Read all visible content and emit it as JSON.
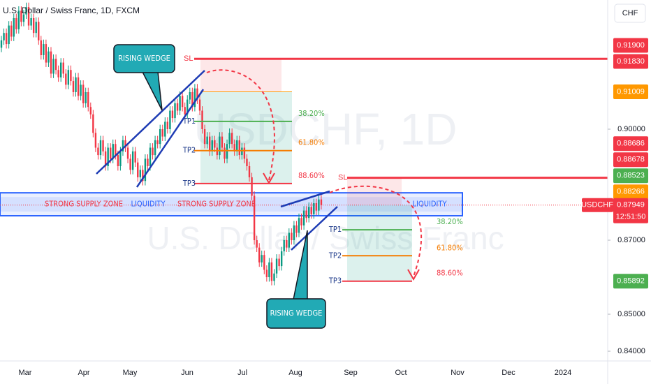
{
  "header": {
    "title": "U.S. Dollar / Swiss Franc, 1D, FXCM",
    "currency": "CHF"
  },
  "watermark": {
    "symbol": "USDCHF, 1D",
    "name": "U.S. Dollar / Swiss Franc"
  },
  "chart_data": {
    "type": "candlestick",
    "up_color": "#089981",
    "down_color": "#f23645",
    "ylim": [
      0.8368,
      0.9349
    ],
    "yticks": [
      {
        "value": 0.84,
        "label": "0.84000"
      },
      {
        "value": 0.85,
        "label": "0.85000"
      },
      {
        "value": 0.87,
        "label": "0.87000"
      },
      {
        "value": 0.9,
        "label": "0.90000"
      }
    ],
    "months": [
      "Mar",
      "Apr",
      "May",
      "Jun",
      "Jul",
      "Aug",
      "Sep",
      "Oct",
      "Nov",
      "Dec",
      "2024"
    ],
    "candles": [
      [
        0.922,
        0.9252,
        0.9208,
        0.924
      ],
      [
        0.924,
        0.9272,
        0.9228,
        0.926
      ],
      [
        0.926,
        0.9272,
        0.9218,
        0.923
      ],
      [
        0.923,
        0.9292,
        0.9218,
        0.928
      ],
      [
        0.928,
        0.9292,
        0.9238,
        0.925
      ],
      [
        0.925,
        0.9312,
        0.9238,
        0.93
      ],
      [
        0.93,
        0.9312,
        0.9258,
        0.927
      ],
      [
        0.927,
        0.9332,
        0.9258,
        0.932
      ],
      [
        0.932,
        0.9332,
        0.9278,
        0.929
      ],
      [
        0.929,
        0.9322,
        0.9278,
        0.931
      ],
      [
        0.931,
        0.9342,
        0.9298,
        0.933
      ],
      [
        0.933,
        0.9342,
        0.9268,
        0.928
      ],
      [
        0.928,
        0.9312,
        0.9268,
        0.93
      ],
      [
        0.93,
        0.9312,
        0.9248,
        0.926
      ],
      [
        0.926,
        0.9302,
        0.9248,
        0.929
      ],
      [
        0.929,
        0.9302,
        0.9228,
        0.924
      ],
      [
        0.924,
        0.9252,
        0.9188,
        0.92
      ],
      [
        0.92,
        0.9242,
        0.9188,
        0.923
      ],
      [
        0.923,
        0.9242,
        0.9168,
        0.918
      ],
      [
        0.918,
        0.9222,
        0.9168,
        0.921
      ],
      [
        0.921,
        0.9222,
        0.9138,
        0.915
      ],
      [
        0.915,
        0.9202,
        0.9138,
        0.919
      ],
      [
        0.919,
        0.9202,
        0.9148,
        0.916
      ],
      [
        0.916,
        0.9172,
        0.9128,
        0.914
      ],
      [
        0.914,
        0.9192,
        0.9128,
        0.918
      ],
      [
        0.918,
        0.9192,
        0.9138,
        0.915
      ],
      [
        0.915,
        0.9162,
        0.9108,
        0.912
      ],
      [
        0.912,
        0.9172,
        0.9108,
        0.916
      ],
      [
        0.916,
        0.9172,
        0.9118,
        0.913
      ],
      [
        0.913,
        0.9142,
        0.9088,
        0.91
      ],
      [
        0.91,
        0.9152,
        0.9088,
        0.914
      ],
      [
        0.914,
        0.9152,
        0.9078,
        0.909
      ],
      [
        0.909,
        0.9132,
        0.9078,
        0.912
      ],
      [
        0.912,
        0.9132,
        0.9058,
        0.907
      ],
      [
        0.907,
        0.9112,
        0.9058,
        0.91
      ],
      [
        0.91,
        0.9112,
        0.9048,
        0.906
      ],
      [
        0.906,
        0.9072,
        0.9028,
        0.904
      ],
      [
        0.904,
        0.9052,
        0.8978,
        0.899
      ],
      [
        0.899,
        0.9002,
        0.8938,
        0.895
      ],
      [
        0.895,
        0.8962,
        0.8918,
        0.893
      ],
      [
        0.893,
        0.8982,
        0.8918,
        0.897
      ],
      [
        0.897,
        0.8982,
        0.8928,
        0.894
      ],
      [
        0.894,
        0.8952,
        0.8888,
        0.89
      ],
      [
        0.89,
        0.8962,
        0.8888,
        0.895
      ],
      [
        0.895,
        0.8962,
        0.8908,
        0.892
      ],
      [
        0.892,
        0.8972,
        0.8908,
        0.896
      ],
      [
        0.896,
        0.8972,
        0.8918,
        0.893
      ],
      [
        0.893,
        0.8942,
        0.8888,
        0.89
      ],
      [
        0.89,
        0.8952,
        0.8888,
        0.894
      ],
      [
        0.894,
        0.8982,
        0.8928,
        0.897
      ],
      [
        0.897,
        0.8982,
        0.8938,
        0.895
      ],
      [
        0.895,
        0.8962,
        0.8908,
        0.892
      ],
      [
        0.892,
        0.8932,
        0.8878,
        0.889
      ],
      [
        0.889,
        0.8952,
        0.8878,
        0.894
      ],
      [
        0.894,
        0.8952,
        0.8898,
        0.891
      ],
      [
        0.891,
        0.8922,
        0.8858,
        0.887
      ],
      [
        0.887,
        0.8902,
        0.8858,
        0.889
      ],
      [
        0.889,
        0.8902,
        0.8848,
        0.886
      ],
      [
        0.886,
        0.8932,
        0.8848,
        0.892
      ],
      [
        0.892,
        0.8932,
        0.8888,
        0.89
      ],
      [
        0.89,
        0.8962,
        0.8888,
        0.895
      ],
      [
        0.895,
        0.8962,
        0.8918,
        0.893
      ],
      [
        0.893,
        0.8982,
        0.8918,
        0.897
      ],
      [
        0.897,
        0.8982,
        0.8948,
        0.896
      ],
      [
        0.896,
        0.9012,
        0.8948,
        0.9
      ],
      [
        0.9,
        0.9012,
        0.8968,
        0.898
      ],
      [
        0.898,
        0.9032,
        0.8968,
        0.902
      ],
      [
        0.902,
        0.9032,
        0.8988,
        0.9
      ],
      [
        0.9,
        0.9062,
        0.8988,
        0.905
      ],
      [
        0.905,
        0.9062,
        0.9018,
        0.903
      ],
      [
        0.903,
        0.9082,
        0.9018,
        0.907
      ],
      [
        0.907,
        0.9082,
        0.9038,
        0.905
      ],
      [
        0.905,
        0.9102,
        0.9038,
        0.909
      ],
      [
        0.909,
        0.9102,
        0.9048,
        0.906
      ],
      [
        0.906,
        0.9072,
        0.9028,
        0.904
      ],
      [
        0.904,
        0.9092,
        0.9028,
        0.908
      ],
      [
        0.908,
        0.9112,
        0.9068,
        0.91
      ],
      [
        0.91,
        0.9112,
        0.9048,
        0.906
      ],
      [
        0.906,
        0.9122,
        0.9048,
        0.911
      ],
      [
        0.911,
        0.9122,
        0.9068,
        0.908
      ],
      [
        0.908,
        0.9092,
        0.9038,
        0.905
      ],
      [
        0.905,
        0.9062,
        0.8988,
        0.9
      ],
      [
        0.9,
        0.9012,
        0.8948,
        0.896
      ],
      [
        0.896,
        0.8992,
        0.8948,
        0.898
      ],
      [
        0.898,
        0.8992,
        0.8928,
        0.894
      ],
      [
        0.894,
        0.8982,
        0.8928,
        0.897
      ],
      [
        0.897,
        0.8982,
        0.8938,
        0.895
      ],
      [
        0.895,
        0.8962,
        0.8918,
        0.893
      ],
      [
        0.893,
        0.8992,
        0.8918,
        0.898
      ],
      [
        0.898,
        0.8992,
        0.8938,
        0.895
      ],
      [
        0.895,
        0.8962,
        0.8908,
        0.892
      ],
      [
        0.892,
        0.8972,
        0.8908,
        0.896
      ],
      [
        0.896,
        0.9002,
        0.8948,
        0.899
      ],
      [
        0.899,
        0.9002,
        0.8948,
        0.896
      ],
      [
        0.896,
        0.8972,
        0.8928,
        0.894
      ],
      [
        0.894,
        0.8982,
        0.8928,
        0.897
      ],
      [
        0.897,
        0.8982,
        0.8918,
        0.893
      ],
      [
        0.893,
        0.8962,
        0.8918,
        0.895
      ],
      [
        0.895,
        0.8962,
        0.8908,
        0.892
      ],
      [
        0.892,
        0.8932,
        0.8888,
        0.89
      ],
      [
        0.89,
        0.8912,
        0.8858,
        0.887
      ],
      [
        0.887,
        0.8882,
        0.8808,
        0.882
      ],
      [
        0.882,
        0.8832,
        0.8688,
        0.87
      ],
      [
        0.87,
        0.8712,
        0.8668,
        0.868
      ],
      [
        0.868,
        0.8692,
        0.8628,
        0.864
      ],
      [
        0.864,
        0.8672,
        0.8628,
        0.866
      ],
      [
        0.866,
        0.8672,
        0.8608,
        0.862
      ],
      [
        0.862,
        0.8632,
        0.8588,
        0.86
      ],
      [
        0.86,
        0.8652,
        0.8588,
        0.864
      ],
      [
        0.864,
        0.8652,
        0.8578,
        0.859
      ],
      [
        0.859,
        0.8622,
        0.8578,
        0.861
      ],
      [
        0.861,
        0.8662,
        0.8598,
        0.865
      ],
      [
        0.865,
        0.8662,
        0.8618,
        0.863
      ],
      [
        0.863,
        0.8682,
        0.8618,
        0.867
      ],
      [
        0.867,
        0.8712,
        0.8658,
        0.87
      ],
      [
        0.87,
        0.8712,
        0.8668,
        0.868
      ],
      [
        0.868,
        0.8732,
        0.8668,
        0.872
      ],
      [
        0.872,
        0.8732,
        0.8688,
        0.87
      ],
      [
        0.87,
        0.8752,
        0.8688,
        0.874
      ],
      [
        0.874,
        0.8752,
        0.8708,
        0.872
      ],
      [
        0.872,
        0.8772,
        0.8708,
        0.876
      ],
      [
        0.876,
        0.8772,
        0.8728,
        0.874
      ],
      [
        0.874,
        0.8792,
        0.8728,
        0.878
      ],
      [
        0.878,
        0.8792,
        0.8748,
        0.876
      ],
      [
        0.876,
        0.8802,
        0.8748,
        0.879
      ],
      [
        0.879,
        0.8802,
        0.8758,
        0.877
      ],
      [
        0.877,
        0.8812,
        0.8758,
        0.88
      ],
      [
        0.88,
        0.8812,
        0.8768,
        0.878
      ],
      [
        0.878,
        0.8822,
        0.8768,
        0.881
      ],
      [
        0.881,
        0.8822,
        0.8783,
        0.87949
      ]
    ]
  },
  "price_badges": [
    {
      "value": 0.919,
      "label": "0.91900",
      "color": "#f23645"
    },
    {
      "value": 0.9183,
      "label": "0.91830",
      "color": "#f23645"
    },
    {
      "value": 0.91009,
      "label": "0.91009",
      "color": "#ff9800"
    },
    {
      "value": 0.88686,
      "label": "0.88686",
      "color": "#f23645"
    },
    {
      "value": 0.88678,
      "label": "0.88678",
      "color": "#f23645"
    },
    {
      "value": 0.88523,
      "label": "0.88523",
      "color": "#4caf50"
    },
    {
      "value": 0.88266,
      "label": "0.88266",
      "color": "#ff9800"
    },
    {
      "value": 0.85892,
      "label": "0.85892",
      "color": "#4caf50"
    }
  ],
  "last_price": {
    "symbol": "USDCHF",
    "value": 0.87949,
    "label": "0.87949",
    "countdown": "12:51:50"
  },
  "setups": [
    {
      "sl_label": "SL",
      "sl": 0.919,
      "entry": 0.91009,
      "targets": [
        {
          "label": "TP1",
          "value": 0.9021,
          "pct": "38.20%",
          "color": "#4caf50"
        },
        {
          "label": "TP2",
          "value": 0.8942,
          "pct": "61.80%",
          "color": "#f57c00"
        },
        {
          "label": "TP3",
          "value": 0.8853,
          "pct": "88.60%",
          "color": "#f23645"
        }
      ]
    },
    {
      "sl_label": "SL",
      "sl": 0.88686,
      "entry": 0.8795,
      "targets": [
        {
          "label": "TP1",
          "value": 0.8728,
          "pct": "38.20%",
          "color": "#4caf50"
        },
        {
          "label": "TP2",
          "value": 0.8658,
          "pct": "61.80%",
          "color": "#f57c00"
        },
        {
          "label": "TP3",
          "value": 0.85892,
          "pct": "88.60%",
          "color": "#f23645"
        }
      ]
    }
  ],
  "zone": {
    "top": 0.8828,
    "bottom": 0.8766,
    "labels": [
      "STRONG SUPPLY ZONE",
      "LIQUIDITY",
      "STRONG SUPPLY ZONE",
      "LIQUIDITY"
    ]
  },
  "callouts": [
    "RISING WEDGE",
    "RISING WEDGE"
  ]
}
